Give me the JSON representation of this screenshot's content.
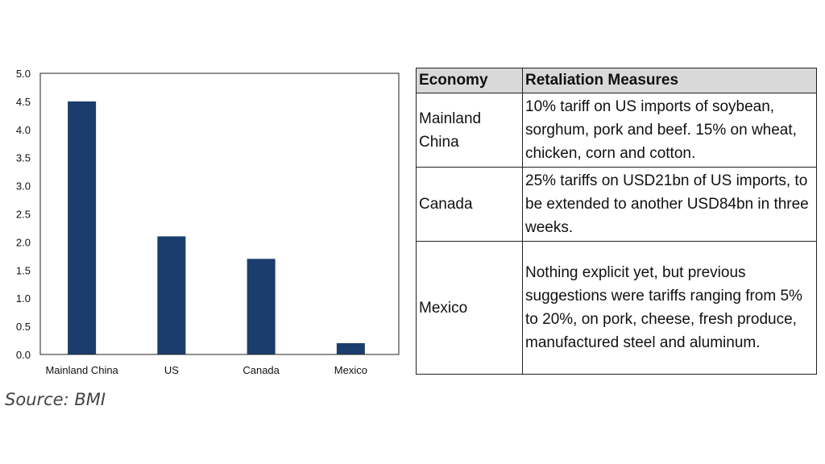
{
  "chart_data": {
    "type": "bar",
    "categories": [
      "Mainland China",
      "US",
      "Canada",
      "Mexico"
    ],
    "values": [
      4.5,
      2.1,
      1.7,
      0.2
    ],
    "ylim": [
      0,
      5.0
    ],
    "yticks": [
      "0.0",
      "0.5",
      "1.0",
      "1.5",
      "2.0",
      "2.5",
      "3.0",
      "3.5",
      "4.0",
      "4.5",
      "5.0"
    ],
    "bar_color": "#1a3d6e",
    "grid": false,
    "legend": "none"
  },
  "source": "Source: BMI",
  "table": {
    "headers": [
      "Economy",
      "Retaliation Measures"
    ],
    "header_bg": "#d9d9d9",
    "rows": [
      {
        "economy": "Mainland China",
        "measures": "10% tariff on US imports of soybean, sorghum, pork and beef. 15% on wheat, chicken, corn and cotton."
      },
      {
        "economy": "Canada",
        "measures": "25% tariffs on USD21bn of US imports, to be extended to another USD84bn in three weeks."
      },
      {
        "economy": "Mexico",
        "measures": "Nothing explicit yet, but previous suggestions were tariffs ranging from 5% to 20%, on pork, cheese, fresh produce, manufactured steel and aluminum."
      }
    ]
  }
}
